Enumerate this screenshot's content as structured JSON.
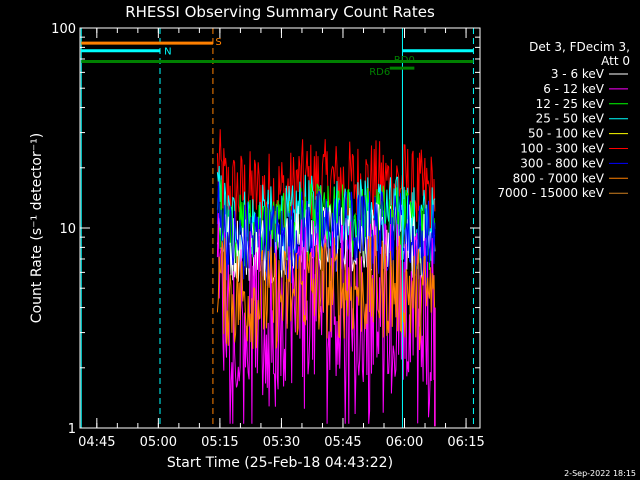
{
  "chart_data": {
    "type": "line",
    "title": "RHESSI Observing Summary Count Rates",
    "xlabel": "Start Time (25-Feb-18 04:43:22)",
    "ylabel": "Count Rate (s⁻¹ detector⁻¹)",
    "y_scale": "log",
    "ylim": [
      1,
      100
    ],
    "y_ticks": [
      {
        "value": 1,
        "label": "1"
      },
      {
        "value": 10,
        "label": "10"
      },
      {
        "value": 100,
        "label": "100"
      }
    ],
    "xlim_minutes": [
      -2.5,
      95
    ],
    "x_ticks": [
      {
        "value": 1.6,
        "label": "04:45"
      },
      {
        "value": 16.6,
        "label": "05:00"
      },
      {
        "value": 31.6,
        "label": "05:15"
      },
      {
        "value": 46.6,
        "label": "05:30"
      },
      {
        "value": 61.6,
        "label": "05:45"
      },
      {
        "value": 76.6,
        "label": "06:00"
      },
      {
        "value": 91.6,
        "label": "06:15"
      }
    ],
    "legend": {
      "position": "right",
      "header_lines": [
        "Det 3, FDecim 3,",
        "Att 0"
      ],
      "entries": [
        {
          "label": "3 - 6 keV",
          "color": "#ffffff"
        },
        {
          "label": "6 - 12 keV",
          "color": "#ff00ff"
        },
        {
          "label": "12 - 25 keV",
          "color": "#00ff00"
        },
        {
          "label": "25 - 50 keV",
          "color": "#00ffff"
        },
        {
          "label": "50 - 100 keV",
          "color": "#ffff00"
        },
        {
          "label": "100 - 300 keV",
          "color": "#ff0000"
        },
        {
          "label": "300 - 800 keV",
          "color": "#0000ff"
        },
        {
          "label": "800 - 7000 keV",
          "color": "#ff8000"
        },
        {
          "label": "7000 - 15000 keV",
          "color": "#d08020"
        }
      ]
    },
    "data_start_min": 31.0,
    "data_end_min": 84.0,
    "series_levels": [
      {
        "name": "100 - 300 keV",
        "color": "#ff0000",
        "base": 15.0,
        "spread": 0.1
      },
      {
        "name": "25 - 50 keV",
        "color": "#00ffff",
        "base": 10.5,
        "spread": 0.09
      },
      {
        "name": "12 - 25 keV",
        "color": "#00ff00",
        "base": 9.5,
        "spread": 0.09
      },
      {
        "name": "3 - 6 keV",
        "color": "#ffffff",
        "base": 8.0,
        "spread": 0.08
      },
      {
        "name": "300 - 800 keV",
        "color": "#0000ff",
        "base": 8.5,
        "spread": 0.1
      },
      {
        "name": "6 - 12 keV",
        "color": "#ff00ff",
        "base": 4.0,
        "spread": 0.18
      },
      {
        "name": "800 - 7000 keV",
        "color": "#ff8000",
        "base": 4.5,
        "spread": 0.12
      }
    ],
    "markers": {
      "vlines": [
        {
          "x": -2.2,
          "color": "#00ffff",
          "dash": false
        },
        {
          "x": 17.0,
          "color": "#00ffff",
          "dash": true
        },
        {
          "x": 29.9,
          "color": "#ff8000",
          "dash": true
        },
        {
          "x": 76.1,
          "color": "#00ffff",
          "dash": false
        },
        {
          "x": 93.4,
          "color": "#00ffff",
          "dash": true
        }
      ],
      "bars": [
        {
          "label": "S",
          "color": "#ff8000",
          "x0": -2.2,
          "x1": 29.9,
          "y": 84
        },
        {
          "label": "N",
          "color": "#00ffff",
          "x0": -2.2,
          "x1": 17.0,
          "y": 77
        },
        {
          "label": "",
          "color": "#00ffff",
          "x0": 76.1,
          "x1": 93.4,
          "y": 77
        },
        {
          "label": "",
          "color": "#008000",
          "x0": -2.2,
          "x1": 93.4,
          "y": 68
        },
        {
          "label": "RD0",
          "color": "#008000",
          "x0": 73.0,
          "x1": 79.0,
          "y": 63
        }
      ],
      "bar_labels": [
        {
          "text": "S",
          "color": "#ff8000",
          "x": 30.5,
          "y": 86
        },
        {
          "text": "N",
          "color": "#00ffff",
          "x": 18.0,
          "y": 77
        },
        {
          "text": "RD0",
          "color": "#008000",
          "x": 74.0,
          "y": 70
        },
        {
          "text": "RD6",
          "color": "#008000",
          "x": 68.0,
          "y": 61
        }
      ]
    },
    "footer_stamp": "2-Sep-2022 18:15"
  }
}
